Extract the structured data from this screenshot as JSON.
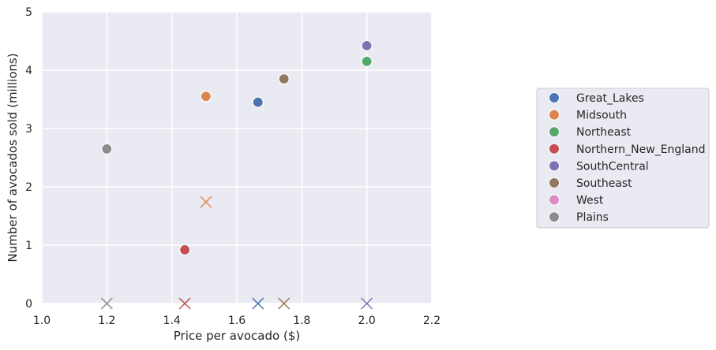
{
  "chart_data": {
    "type": "scatter",
    "title": "",
    "xlabel": "Price per avocado ($)",
    "ylabel": "Number of avocados sold (millions)",
    "xlim": [
      1.0,
      2.2
    ],
    "ylim": [
      0,
      5
    ],
    "xticks": [
      1.0,
      1.2,
      1.4,
      1.6,
      1.8,
      2.0,
      2.2
    ],
    "xtick_labels": [
      "1.0",
      "1.2",
      "1.4",
      "1.6",
      "1.8",
      "2.0",
      "2.2"
    ],
    "yticks": [
      0,
      1,
      2,
      3,
      4,
      5
    ],
    "ytick_labels": [
      "0",
      "1",
      "2",
      "3",
      "4",
      "5"
    ],
    "grid": true,
    "legend_position": "right",
    "series": [
      {
        "name": "Great_Lakes",
        "color": "#4c72b0",
        "points": [
          {
            "x": 1.665,
            "y": 3.45
          }
        ],
        "x_markers": [
          {
            "x": 1.665,
            "y": 0
          }
        ]
      },
      {
        "name": "Midsouth",
        "color": "#dd8452",
        "points": [
          {
            "x": 1.505,
            "y": 3.55
          }
        ],
        "x_markers": [
          {
            "x": 1.505,
            "y": 1.74
          }
        ]
      },
      {
        "name": "Northeast",
        "color": "#55a868",
        "points": [
          {
            "x": 2.0,
            "y": 4.15
          }
        ],
        "x_markers": []
      },
      {
        "name": "Northern_New_England",
        "color": "#c44e52",
        "points": [
          {
            "x": 1.44,
            "y": 0.92
          }
        ],
        "x_markers": [
          {
            "x": 1.44,
            "y": 0
          }
        ]
      },
      {
        "name": "SouthCentral",
        "color": "#8172b3",
        "points": [
          {
            "x": 2.0,
            "y": 4.42
          }
        ],
        "x_markers": [
          {
            "x": 2.0,
            "y": 0
          }
        ]
      },
      {
        "name": "Southeast",
        "color": "#937860",
        "points": [
          {
            "x": 1.745,
            "y": 3.85
          }
        ],
        "x_markers": [
          {
            "x": 1.745,
            "y": 0
          }
        ]
      },
      {
        "name": "West",
        "color": "#da8bc3",
        "points": [],
        "x_markers": []
      },
      {
        "name": "Plains",
        "color": "#8c8c8c",
        "points": [
          {
            "x": 1.2,
            "y": 2.65
          }
        ],
        "x_markers": [
          {
            "x": 1.2,
            "y": 0
          }
        ]
      }
    ]
  }
}
